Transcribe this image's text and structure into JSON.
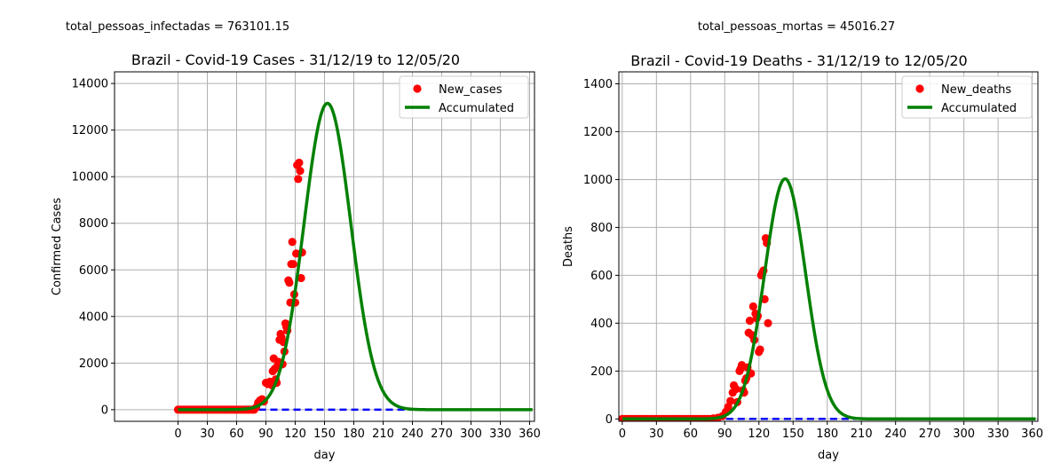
{
  "colors": {
    "new_points": "#ff0000",
    "accumulated_line": "#008000",
    "baseline_dash": "#0000ff",
    "grid": "#b0b0b0"
  },
  "chart_data": [
    {
      "type": "line",
      "top_text": "total_pessoas_infectadas = 763101.15",
      "title": "Brazil - Covid-19 Cases - 31/12/19 to 12/05/20",
      "xlabel": "day",
      "ylabel": "Confirmed Cases",
      "xlim": [
        -65,
        365
      ],
      "ylim": [
        -500,
        14500
      ],
      "xticks": [
        0,
        30,
        60,
        90,
        120,
        150,
        180,
        210,
        240,
        270,
        300,
        330,
        360
      ],
      "yticks": [
        0,
        2000,
        4000,
        6000,
        8000,
        10000,
        12000,
        14000
      ],
      "grid": true,
      "legend_position": "top-right",
      "legend": [
        "New_cases",
        "Accumulated"
      ],
      "fit_curve": {
        "peak_x": 153,
        "peak_y": 13150,
        "sigma": 24,
        "x_range": [
          0,
          363
        ]
      },
      "baseline": {
        "y": 0,
        "x_range": [
          0,
          240
        ]
      },
      "points": [
        [
          0,
          0
        ],
        [
          2,
          0
        ],
        [
          4,
          0
        ],
        [
          6,
          0
        ],
        [
          8,
          0
        ],
        [
          10,
          0
        ],
        [
          12,
          0
        ],
        [
          14,
          0
        ],
        [
          16,
          0
        ],
        [
          18,
          0
        ],
        [
          20,
          0
        ],
        [
          22,
          0
        ],
        [
          24,
          0
        ],
        [
          26,
          0
        ],
        [
          28,
          0
        ],
        [
          30,
          0
        ],
        [
          32,
          0
        ],
        [
          34,
          0
        ],
        [
          36,
          0
        ],
        [
          38,
          0
        ],
        [
          40,
          0
        ],
        [
          42,
          0
        ],
        [
          44,
          0
        ],
        [
          46,
          0
        ],
        [
          48,
          0
        ],
        [
          50,
          0
        ],
        [
          52,
          0
        ],
        [
          54,
          0
        ],
        [
          56,
          0
        ],
        [
          58,
          0
        ],
        [
          60,
          0
        ],
        [
          62,
          0
        ],
        [
          64,
          0
        ],
        [
          66,
          0
        ],
        [
          68,
          0
        ],
        [
          70,
          0
        ],
        [
          72,
          0
        ],
        [
          74,
          0
        ],
        [
          76,
          0
        ],
        [
          78,
          0
        ],
        [
          80,
          100
        ],
        [
          82,
          300
        ],
        [
          84,
          400
        ],
        [
          86,
          450
        ],
        [
          88,
          350
        ],
        [
          90,
          1150
        ],
        [
          92,
          1100
        ],
        [
          94,
          1200
        ],
        [
          96,
          1050
        ],
        [
          97,
          1650
        ],
        [
          98,
          2200
        ],
        [
          99,
          1750
        ],
        [
          100,
          1300
        ],
        [
          101,
          1150
        ],
        [
          102,
          1900
        ],
        [
          103,
          2050
        ],
        [
          104,
          3000
        ],
        [
          105,
          3250
        ],
        [
          106,
          3100
        ],
        [
          107,
          1950
        ],
        [
          108,
          2900
        ],
        [
          109,
          2500
        ],
        [
          110,
          3700
        ],
        [
          111,
          3550
        ],
        [
          112,
          3400
        ],
        [
          113,
          5550
        ],
        [
          114,
          5450
        ],
        [
          115,
          4600
        ],
        [
          116,
          6250
        ],
        [
          117,
          7200
        ],
        [
          118,
          6250
        ],
        [
          119,
          4950
        ],
        [
          120,
          4600
        ],
        [
          121,
          6700
        ],
        [
          122,
          10500
        ],
        [
          123,
          9900
        ],
        [
          124,
          10600
        ],
        [
          125,
          10250
        ],
        [
          126,
          5650
        ],
        [
          127,
          6750
        ]
      ]
    },
    {
      "type": "line",
      "top_text": "total_pessoas_mortas = 45016.27",
      "title": "Brazil - Covid-19 Deaths - 31/12/19 to 12/05/20",
      "xlabel": "day",
      "ylabel": "Deaths",
      "xlim": [
        -3,
        365
      ],
      "ylim": [
        -10,
        1450
      ],
      "xticks": [
        0,
        30,
        60,
        90,
        120,
        150,
        180,
        210,
        240,
        270,
        300,
        330,
        360
      ],
      "yticks": [
        0,
        200,
        400,
        600,
        800,
        1000,
        1200,
        1400
      ],
      "grid": true,
      "legend_position": "top-right",
      "legend": [
        "New_deaths",
        "Accumulated"
      ],
      "fit_curve": {
        "peak_x": 143,
        "peak_y": 1003,
        "sigma": 18,
        "x_range": [
          0,
          363
        ]
      },
      "baseline": {
        "y": 0,
        "x_range": [
          0,
          210
        ]
      },
      "points": [
        [
          0,
          0
        ],
        [
          2,
          0
        ],
        [
          4,
          0
        ],
        [
          6,
          0
        ],
        [
          8,
          0
        ],
        [
          10,
          0
        ],
        [
          12,
          0
        ],
        [
          14,
          0
        ],
        [
          16,
          0
        ],
        [
          18,
          0
        ],
        [
          20,
          0
        ],
        [
          22,
          0
        ],
        [
          24,
          0
        ],
        [
          26,
          0
        ],
        [
          28,
          0
        ],
        [
          30,
          0
        ],
        [
          32,
          0
        ],
        [
          34,
          0
        ],
        [
          36,
          0
        ],
        [
          38,
          0
        ],
        [
          40,
          0
        ],
        [
          42,
          0
        ],
        [
          44,
          0
        ],
        [
          46,
          0
        ],
        [
          48,
          0
        ],
        [
          50,
          0
        ],
        [
          52,
          0
        ],
        [
          54,
          0
        ],
        [
          56,
          0
        ],
        [
          58,
          0
        ],
        [
          60,
          0
        ],
        [
          62,
          0
        ],
        [
          64,
          0
        ],
        [
          66,
          0
        ],
        [
          68,
          0
        ],
        [
          70,
          0
        ],
        [
          72,
          0
        ],
        [
          74,
          0
        ],
        [
          76,
          0
        ],
        [
          78,
          0
        ],
        [
          80,
          2
        ],
        [
          84,
          5
        ],
        [
          88,
          12
        ],
        [
          91,
          30
        ],
        [
          93,
          50
        ],
        [
          95,
          75
        ],
        [
          97,
          110
        ],
        [
          98,
          140
        ],
        [
          100,
          125
        ],
        [
          101,
          70
        ],
        [
          103,
          200
        ],
        [
          104,
          210
        ],
        [
          105,
          225
        ],
        [
          106,
          120
        ],
        [
          107,
          110
        ],
        [
          108,
          160
        ],
        [
          109,
          170
        ],
        [
          110,
          215
        ],
        [
          111,
          360
        ],
        [
          112,
          410
        ],
        [
          113,
          190
        ],
        [
          114,
          350
        ],
        [
          115,
          470
        ],
        [
          116,
          330
        ],
        [
          117,
          440
        ],
        [
          118,
          420
        ],
        [
          119,
          430
        ],
        [
          120,
          280
        ],
        [
          121,
          290
        ],
        [
          122,
          600
        ],
        [
          123,
          610
        ],
        [
          124,
          620
        ],
        [
          125,
          500
        ],
        [
          126,
          755
        ],
        [
          127,
          735
        ],
        [
          128,
          400
        ]
      ]
    }
  ]
}
